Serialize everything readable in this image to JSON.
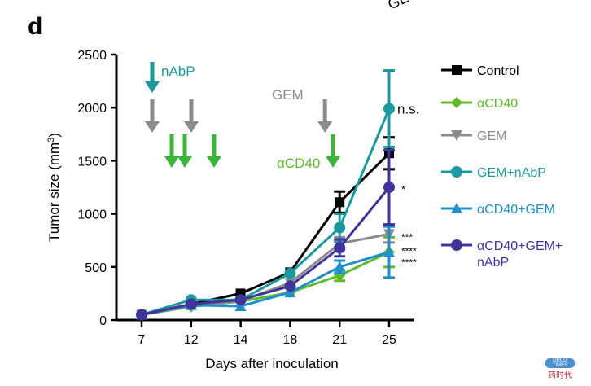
{
  "panel_label": "d",
  "cut_off_text": "GE",
  "watermark": {
    "top": "DRUG TIMES",
    "bottom": "药时代"
  },
  "colors": {
    "Control": "#000000",
    "αCD40": "#5fba2e",
    "GEM": "#8c8c8c",
    "GEM+nAbP": "#1a9aa0",
    "αCD40+GEM": "#1e8fcb",
    "αCD40+GEM+nAbP": "#40349a"
  },
  "annotations": {
    "nabp_label": "nAbP",
    "nabp_days": [
      7
    ],
    "gem_label": "GEM",
    "gem_days": [
      7,
      12,
      21
    ],
    "acd40_label": "αCD40",
    "acd40_days": [
      10,
      11,
      13,
      21
    ]
  },
  "chart_data": {
    "type": "line",
    "xlabel": "Days after inoculation",
    "ylabel": "Tumor size (mm3)",
    "ylabel_main": "Tumor size (mm",
    "ylabel_sup": "3",
    "ylabel_end": ")",
    "categories": [
      "7",
      "12",
      "14",
      "18",
      "21",
      "25"
    ],
    "ylim": [
      0,
      2500
    ],
    "yticks": [
      "0",
      "500",
      "1000",
      "1500",
      "2000",
      "2500"
    ],
    "grid": false,
    "legend_position": "right",
    "series": [
      {
        "name": "Control",
        "marker": "square",
        "values": [
          50,
          150,
          250,
          450,
          1110,
          1570
        ],
        "errors": [
          0,
          0,
          0,
          0,
          100,
          150
        ],
        "sig": "n.s."
      },
      {
        "name": "αCD40",
        "marker": "diamond",
        "values": [
          50,
          125,
          175,
          260,
          420,
          640
        ],
        "errors": [
          0,
          0,
          0,
          0,
          50,
          140
        ],
        "sig": "****"
      },
      {
        "name": "GEM",
        "marker": "triangle-down",
        "values": [
          50,
          130,
          180,
          350,
          720,
          810
        ],
        "errors": [
          0,
          0,
          0,
          0,
          60,
          80
        ],
        "sig": "***"
      },
      {
        "name": "GEM+nAbP",
        "marker": "circle",
        "values": [
          50,
          190,
          190,
          440,
          870,
          1990
        ],
        "errors": [
          0,
          0,
          0,
          0,
          130,
          360
        ],
        "sig": "n.s."
      },
      {
        "name": "αCD40+GEM",
        "marker": "triangle-up",
        "values": [
          50,
          140,
          130,
          260,
          500,
          640
        ],
        "errors": [
          0,
          0,
          0,
          0,
          60,
          240
        ],
        "sig": "****"
      },
      {
        "name": "αCD40+GEM+nAbP",
        "legend_lines": [
          "αCD40+GEM+",
          "nAbP"
        ],
        "marker": "circle",
        "values": [
          50,
          150,
          190,
          320,
          680,
          1250
        ],
        "errors": [
          0,
          0,
          0,
          0,
          80,
          350
        ],
        "sig": "*"
      }
    ],
    "significance_labels": [
      "n.s.",
      "*",
      "***",
      "****",
      "****"
    ]
  }
}
